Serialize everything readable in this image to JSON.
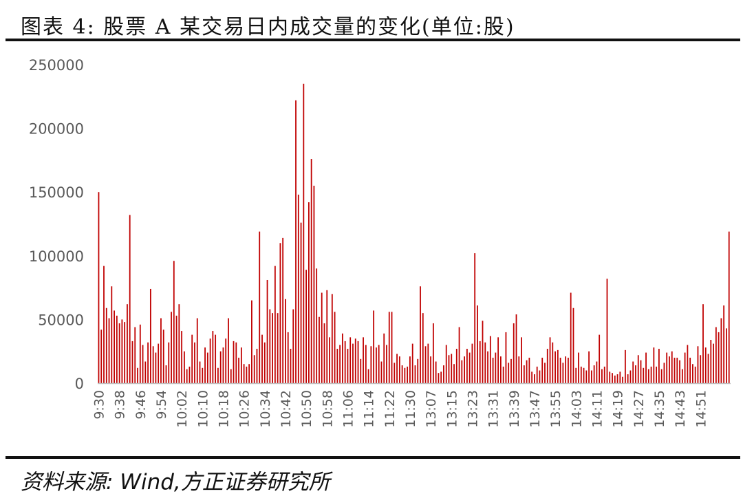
{
  "header": {
    "title": "图表 4:  股票 A 某交易日内成交量的变化(单位:股)"
  },
  "footer": {
    "source": "资料来源:  Wind,方正证券研究所"
  },
  "colors": {
    "bar": "#c00000",
    "axis": "#bfbfbf",
    "tick_label": "#595959",
    "rule": "#111111"
  },
  "chart_data": {
    "type": "bar",
    "title": "",
    "xlabel": "",
    "ylabel": "",
    "ylim": [
      0,
      250000
    ],
    "yticks": [
      0,
      50000,
      100000,
      150000,
      200000,
      250000
    ],
    "grid": false,
    "x_tick_labels": [
      "9:30",
      "9:38",
      "9:46",
      "9:54",
      "10:02",
      "10:10",
      "10:18",
      "10:26",
      "10:34",
      "10:42",
      "10:50",
      "10:58",
      "11:06",
      "11:14",
      "11:22",
      "11:30",
      "13:07",
      "13:15",
      "13:23",
      "13:31",
      "13:39",
      "13:47",
      "13:55",
      "14:03",
      "14:11",
      "14:19",
      "14:27",
      "14:35",
      "14:43",
      "14:51"
    ],
    "x_tick_every": 8,
    "values": [
      150000,
      42000,
      92000,
      59000,
      51000,
      76000,
      57000,
      53000,
      47000,
      50000,
      48000,
      62000,
      132000,
      33000,
      44000,
      12000,
      46000,
      30000,
      17000,
      32000,
      74000,
      29000,
      24000,
      31000,
      51000,
      42000,
      14000,
      32000,
      56000,
      96000,
      53000,
      62000,
      41000,
      25000,
      11000,
      13000,
      38000,
      32000,
      51000,
      17000,
      12000,
      28000,
      24000,
      35000,
      41000,
      38000,
      12000,
      25000,
      28000,
      35000,
      51000,
      11000,
      33000,
      32000,
      20000,
      28000,
      15000,
      13000,
      15000,
      65000,
      22000,
      27000,
      119000,
      38000,
      32000,
      81000,
      58000,
      55000,
      92000,
      55000,
      110000,
      114000,
      66000,
      40000,
      27000,
      58000,
      222000,
      148000,
      126000,
      235000,
      89000,
      142000,
      176000,
      155000,
      90000,
      52000,
      71000,
      47000,
      73000,
      36000,
      70000,
      56000,
      27000,
      30000,
      39000,
      33000,
      27000,
      36000,
      31000,
      35000,
      33000,
      19000,
      36000,
      30000,
      11000,
      29000,
      57000,
      28000,
      30000,
      17000,
      39000,
      30000,
      56000,
      56000,
      16000,
      23000,
      21000,
      14000,
      12000,
      13000,
      21000,
      31000,
      14000,
      19000,
      76000,
      55000,
      29000,
      31000,
      21000,
      47000,
      17000,
      8000,
      9000,
      14000,
      30000,
      22000,
      23000,
      15000,
      27000,
      44000,
      18000,
      21000,
      27000,
      24000,
      31000,
      102000,
      61000,
      33000,
      49000,
      32000,
      25000,
      37000,
      20000,
      24000,
      36000,
      21000,
      13000,
      40000,
      16000,
      19000,
      47000,
      54000,
      21000,
      36000,
      14000,
      18000,
      20000,
      9000,
      7000,
      13000,
      10000,
      20000,
      16000,
      27000,
      36000,
      32000,
      25000,
      26000,
      20000,
      16000,
      21000,
      20000,
      71000,
      59000,
      12000,
      24000,
      13000,
      12000,
      10000,
      25000,
      10000,
      14000,
      17000,
      38000,
      11000,
      13000,
      82000,
      9000,
      8000,
      6000,
      7000,
      9000,
      5000,
      26000,
      7000,
      10000,
      17000,
      14000,
      22000,
      18000,
      12000,
      24000,
      11000,
      13000,
      28000,
      13000,
      27000,
      11000,
      16000,
      24000,
      21000,
      25000,
      20000,
      20000,
      18000,
      11000,
      24000,
      30000,
      20000,
      15000,
      13000,
      29000,
      22000,
      62000,
      28000,
      23000,
      34000,
      31000,
      44000,
      40000,
      51000,
      61000,
      43000,
      119000
    ]
  }
}
